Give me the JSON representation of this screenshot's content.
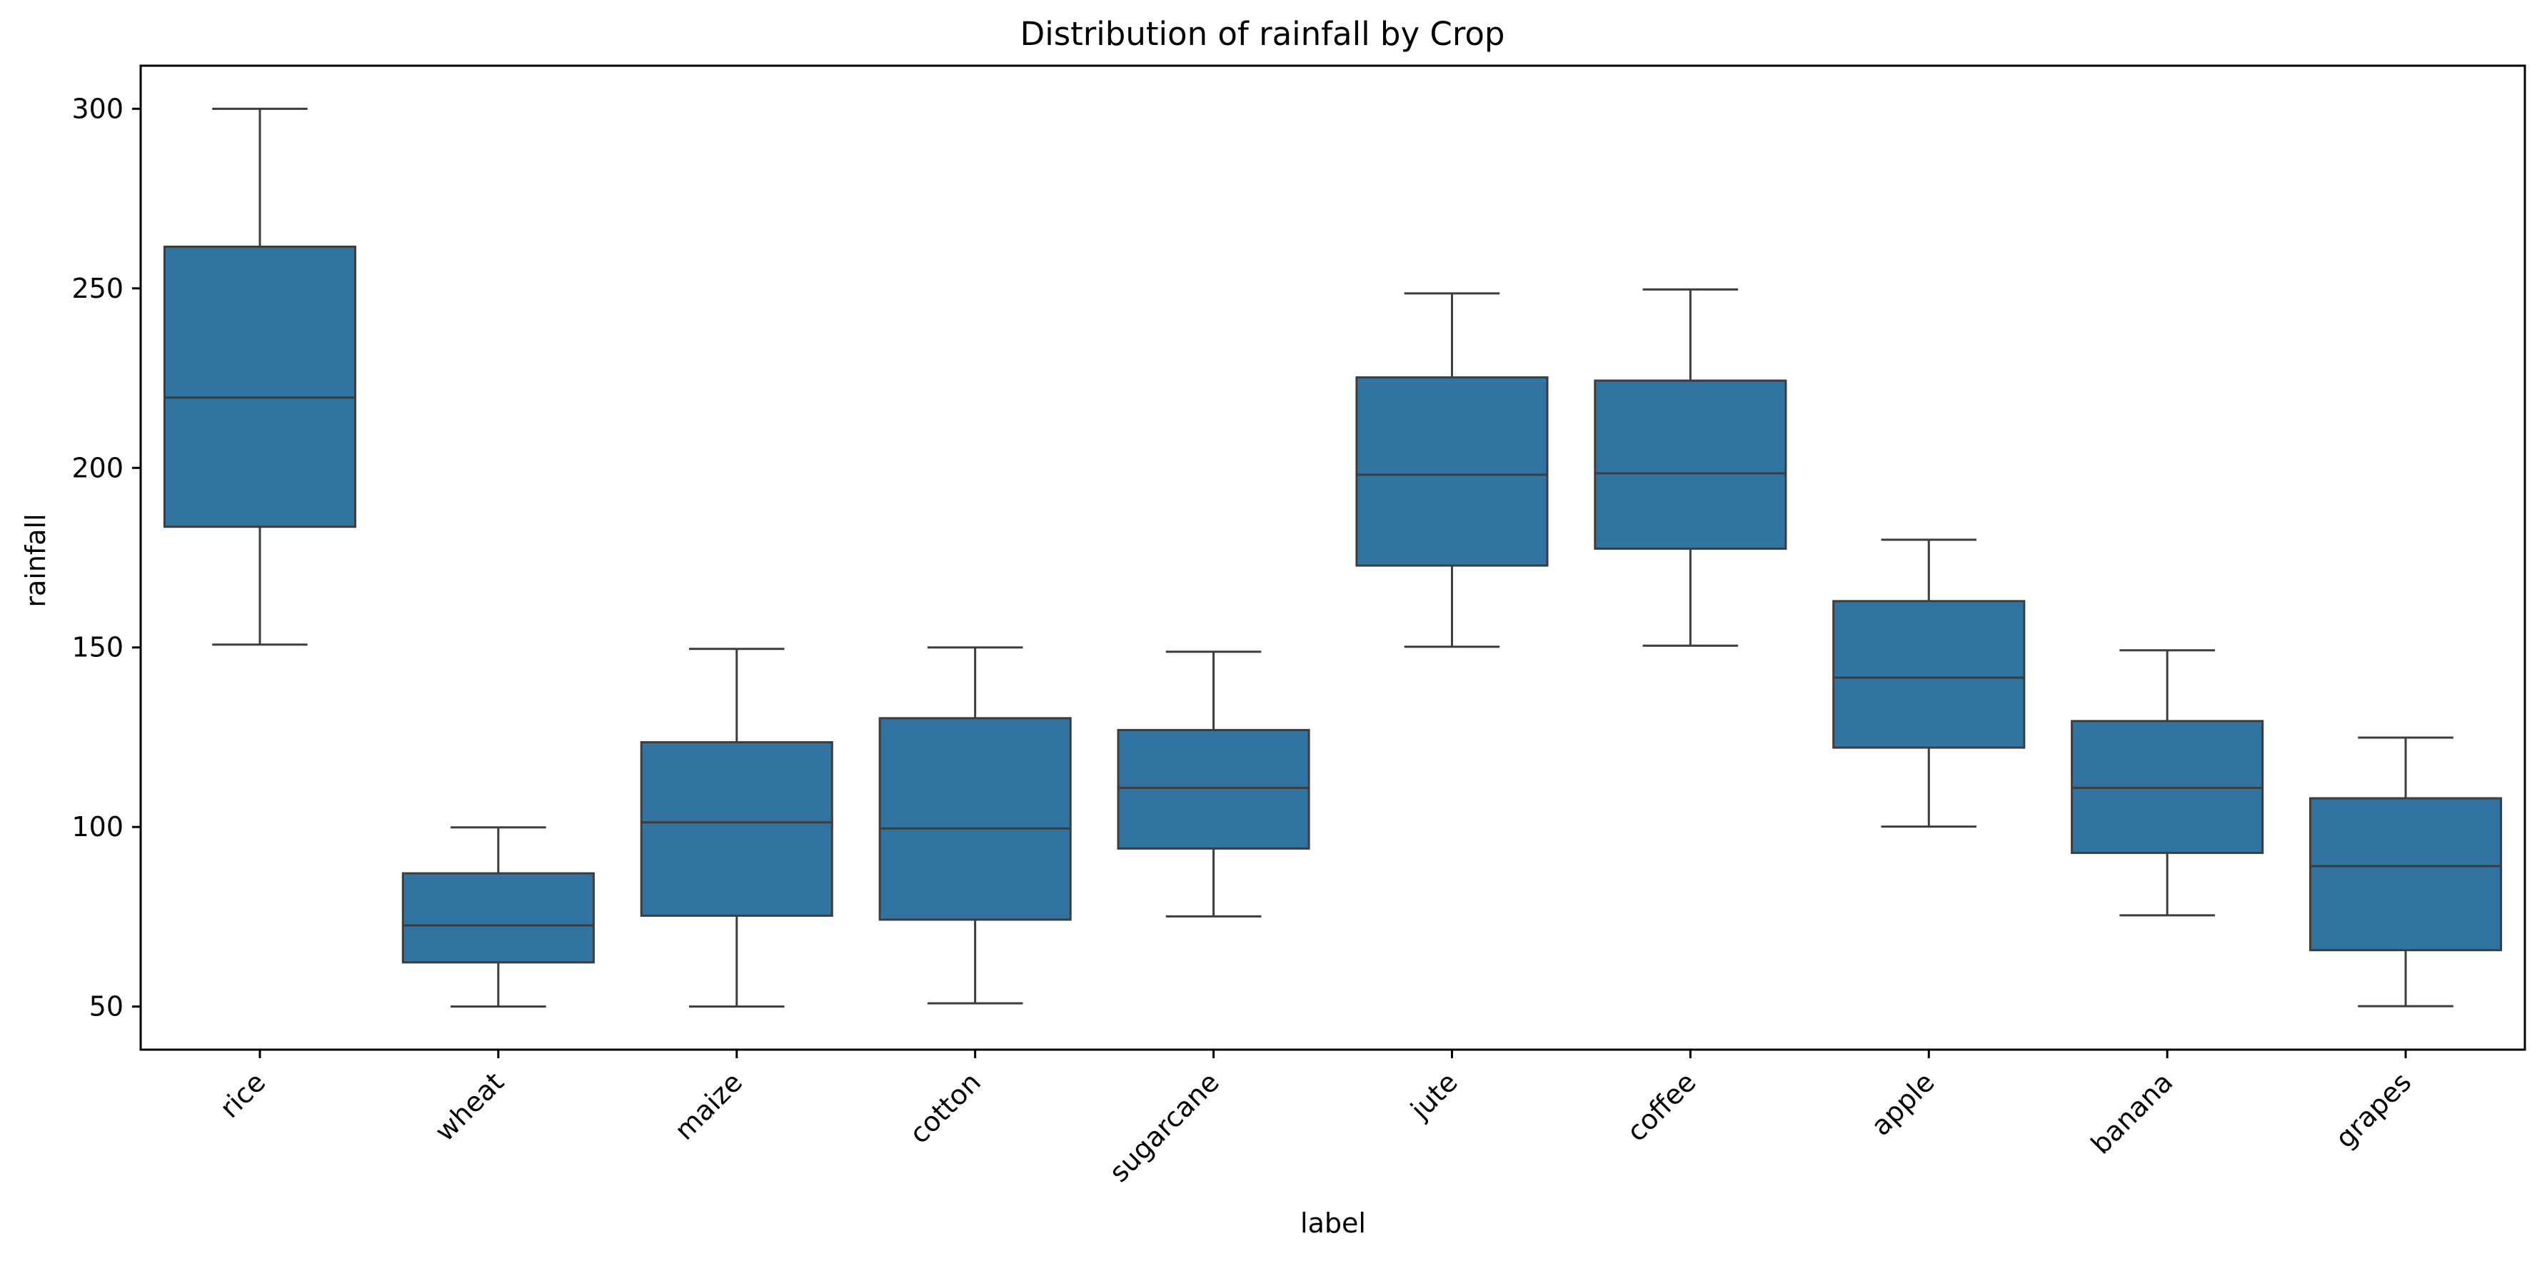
{
  "chart_data": {
    "type": "box",
    "title": "Distribution of rainfall by Crop",
    "xlabel": "label",
    "ylabel": "rainfall",
    "ylim": [
      38,
      312
    ],
    "yticks": [
      50,
      100,
      150,
      200,
      250,
      300
    ],
    "grid": false,
    "box_color": "#3274a1",
    "line_color": "#3d3d3d",
    "categories": [
      "rice",
      "wheat",
      "maize",
      "cotton",
      "sugarcane",
      "jute",
      "coffee",
      "apple",
      "banana",
      "grapes"
    ],
    "boxes": [
      {
        "label": "rice",
        "whislo": 150.8,
        "q1": 183.6,
        "med": 219.6,
        "q3": 261.6,
        "whishi": 300.0
      },
      {
        "label": "wheat",
        "whislo": 50.0,
        "q1": 62.3,
        "med": 72.6,
        "q3": 87.1,
        "whishi": 99.9
      },
      {
        "label": "maize",
        "whislo": 50.0,
        "q1": 75.3,
        "med": 101.3,
        "q3": 123.6,
        "whishi": 149.6
      },
      {
        "label": "cotton",
        "whislo": 50.9,
        "q1": 74.2,
        "med": 99.6,
        "q3": 130.3,
        "whishi": 150.0
      },
      {
        "label": "sugarcane",
        "whislo": 75.1,
        "q1": 94.0,
        "med": 110.9,
        "q3": 127.0,
        "whishi": 148.8
      },
      {
        "label": "jute",
        "whislo": 150.2,
        "q1": 172.8,
        "med": 198.1,
        "q3": 225.2,
        "whishi": 248.6
      },
      {
        "label": "coffee",
        "whislo": 150.5,
        "q1": 177.5,
        "med": 198.5,
        "q3": 224.3,
        "whishi": 249.7
      },
      {
        "label": "apple",
        "whislo": 100.1,
        "q1": 122.1,
        "med": 141.6,
        "q3": 162.9,
        "whishi": 180.0
      },
      {
        "label": "banana",
        "whislo": 75.4,
        "q1": 92.8,
        "med": 110.9,
        "q3": 129.5,
        "whishi": 149.2
      },
      {
        "label": "grapes",
        "whislo": 50.1,
        "q1": 65.7,
        "med": 89.1,
        "q3": 108.0,
        "whishi": 124.9
      }
    ]
  }
}
